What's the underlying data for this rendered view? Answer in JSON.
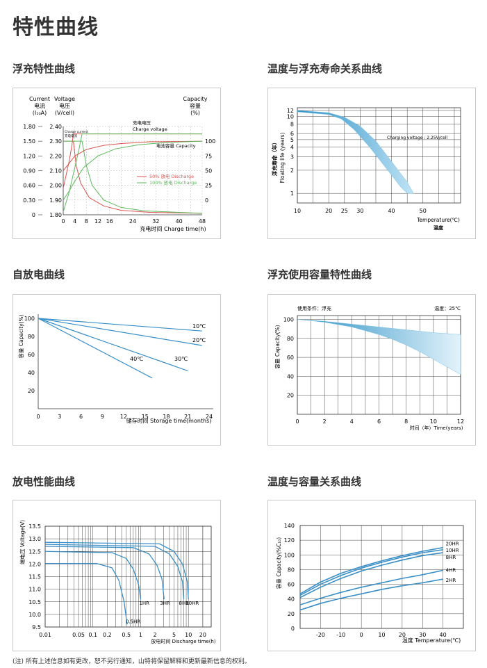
{
  "page_title": "特性曲线",
  "footnote": "(注) 所有上述信息如有更改，恕不另行通知，山特将保留解释和更新最新信息的权利。",
  "sections": {
    "float": "浮充特性曲线",
    "temp_life": "温度与浮充寿命关系曲线",
    "self_discharge": "自放电曲线",
    "float_capacity": "浮充使用容量特性曲线",
    "discharge": "放电性能曲线",
    "temp_capacity": "温度与容量关系曲线"
  },
  "chart_data": [
    {
      "id": "float",
      "type": "line",
      "labels": {
        "current_head": "Current",
        "current_cn": "电流",
        "current_unit": "(I₁₀A)",
        "voltage_head": "Voltage",
        "voltage_cn": "电压",
        "voltage_unit": "(V/cell)",
        "capacity_head": "Capacity",
        "capacity_cn": "容量",
        "capacity_unit": "(%)",
        "xlabel": "充电时间 Charge time(h)",
        "charge_voltage_cn": "充电电压",
        "charge_voltage_en": "Charge voltage",
        "charge_current_en": "Charge current",
        "charge_current_cn": "充电电流",
        "capacity_label": "电池容量 Capacity",
        "legend_50": "50% 放电 Discharge",
        "legend_100": "100% 放电 Discharge"
      },
      "current_ticks": [
        "1.80",
        "1.50",
        "1.20",
        "0.90",
        "0.60",
        "0.30",
        "0"
      ],
      "voltage_ticks": [
        "2.40",
        "2.30",
        "2.20",
        "2.10",
        "2.00",
        "1.90",
        "1.80"
      ],
      "capacity_ticks": [
        "100",
        "75",
        "50",
        "25",
        "0"
      ],
      "x_ticks": [
        "0",
        "4",
        "8",
        "12",
        "16",
        "20",
        "24",
        "28",
        "32",
        "36",
        "40",
        "44",
        "48"
      ],
      "x_tick_labels_shown": [
        "0",
        "4",
        "8",
        "12",
        "16",
        "24",
        "32",
        "40",
        "48"
      ],
      "colors": {
        "d50": "#d9534f",
        "d100": "#5cb85c"
      },
      "series": [
        {
          "key": "voltage_50",
          "color": "#d9534f",
          "x": [
            0,
            1,
            2,
            3,
            3.5,
            48
          ],
          "y_voltage": [
            1.98,
            2.07,
            2.16,
            2.27,
            2.35,
            2.35
          ]
        },
        {
          "key": "voltage_100",
          "color": "#5cb85c",
          "x": [
            0,
            2,
            4,
            5.5,
            6.5,
            48
          ],
          "y_voltage": [
            1.82,
            1.95,
            2.12,
            2.25,
            2.35,
            2.35
          ]
        },
        {
          "key": "current_50",
          "color": "#d9534f",
          "x": [
            0,
            3.5,
            4.5,
            6,
            9,
            14,
            20,
            30,
            48
          ],
          "y_current": [
            1.5,
            1.5,
            1.0,
            0.65,
            0.35,
            0.18,
            0.09,
            0.05,
            0.03
          ]
        },
        {
          "key": "current_100",
          "color": "#5cb85c",
          "x": [
            0,
            6.5,
            8,
            10,
            14,
            20,
            28,
            40,
            48
          ],
          "y_current": [
            1.5,
            1.5,
            1.0,
            0.6,
            0.3,
            0.15,
            0.08,
            0.05,
            0.03
          ]
        },
        {
          "key": "capacity_50",
          "color": "#d9534f",
          "x": [
            0,
            2,
            4,
            8,
            14,
            20,
            30,
            48
          ],
          "y_capacity": [
            50,
            62,
            75,
            86,
            93,
            96,
            99,
            100
          ]
        },
        {
          "key": "capacity_100",
          "color": "#5cb85c",
          "x": [
            0,
            2,
            4,
            7,
            12,
            18,
            26,
            36,
            48
          ],
          "y_capacity": [
            0,
            15,
            32,
            55,
            75,
            87,
            94,
            98,
            100
          ]
        }
      ]
    },
    {
      "id": "temp_life",
      "type": "area",
      "ylabel_cn": "浮充寿命（年）",
      "ylabel_en": "Floating life (years)",
      "xlabel_en": "Temperature(℃)",
      "xlabel_cn": "温度",
      "annotation": "Charging voltage : 2.25V/cell",
      "x_ticks": [
        10,
        20,
        25,
        30,
        40,
        50
      ],
      "y_ticks": [
        1,
        2,
        3,
        4,
        5,
        6,
        8,
        10,
        12
      ],
      "xlim": [
        10,
        50
      ],
      "band_upper": {
        "x": [
          10,
          20,
          25,
          30,
          35,
          40,
          45,
          47
        ],
        "y": [
          12,
          11.2,
          9.8,
          7.5,
          4.8,
          2.6,
          1.4,
          1.0
        ]
      },
      "band_lower": {
        "x": [
          10,
          20,
          24,
          28,
          33,
          38,
          43,
          45
        ],
        "y": [
          11.5,
          10.6,
          9.3,
          6.8,
          4.0,
          2.2,
          1.2,
          1.0
        ]
      }
    },
    {
      "id": "self_discharge",
      "type": "line",
      "ylabel": "容量 Capacity(%)",
      "xlabel": "储存时间 Storage time(months)",
      "x_ticks": [
        0,
        3,
        6,
        9,
        12,
        15,
        18,
        21,
        24
      ],
      "y_ticks": [
        20,
        40,
        60,
        80,
        100
      ],
      "xlim": [
        0,
        24
      ],
      "ylim": [
        0,
        100
      ],
      "series": [
        {
          "name": "10℃",
          "x": [
            0,
            23
          ],
          "y": [
            100,
            86
          ]
        },
        {
          "name": "20℃",
          "x": [
            0,
            23
          ],
          "y": [
            100,
            70
          ]
        },
        {
          "name": "30℃",
          "x": [
            0,
            21
          ],
          "y": [
            100,
            42
          ]
        },
        {
          "name": "40℃",
          "x": [
            0,
            16
          ],
          "y": [
            100,
            34
          ]
        }
      ]
    },
    {
      "id": "float_capacity",
      "type": "area",
      "condition": "使用条件：浮充",
      "temperature": "温度：25℃",
      "ylabel": "容量 Capacity(%)",
      "xlabel": "时间（年）Time(years)",
      "x_ticks": [
        0,
        2,
        4,
        6,
        8,
        10,
        12
      ],
      "y_ticks": [
        20,
        40,
        60,
        80,
        100
      ],
      "xlim": [
        0,
        12
      ],
      "ylim": [
        0,
        100
      ],
      "band_upper": {
        "x": [
          0,
          2,
          4,
          6,
          8,
          10,
          12
        ],
        "y": [
          100,
          98,
          95,
          92,
          89,
          86,
          84
        ]
      },
      "band_lower": {
        "x": [
          0,
          2,
          4,
          6,
          7,
          8,
          9,
          10,
          11,
          12
        ],
        "y": [
          100,
          97,
          92,
          84,
          79,
          73,
          66,
          58,
          50,
          42
        ]
      }
    },
    {
      "id": "discharge",
      "type": "line",
      "ylabel": "端电压 Voltage(V)",
      "xlabel": "放电时间 Discharge time(h)",
      "x_ticks": [
        "0.01",
        "0.05",
        "0.1",
        "0.2",
        "0.5",
        "1",
        "2",
        "5",
        "10",
        "20"
      ],
      "y_ticks": [
        9.5,
        10.0,
        10.5,
        11.0,
        11.5,
        12.0,
        12.5,
        13.0,
        13.5
      ],
      "xlim": [
        0.01,
        30
      ],
      "ylim": [
        9.5,
        13.5
      ],
      "x_scale": "log",
      "series": [
        {
          "name": "0.5HR",
          "x": [
            0.01,
            0.12,
            0.25,
            0.35,
            0.45,
            0.52
          ],
          "y": [
            12.02,
            12.02,
            11.85,
            11.35,
            10.5,
            9.6
          ]
        },
        {
          "name": "1HR",
          "x": [
            0.01,
            0.25,
            0.5,
            0.7,
            0.9,
            1.0
          ],
          "y": [
            12.5,
            12.45,
            12.22,
            11.8,
            11.2,
            10.6
          ]
        },
        {
          "name": "3HR",
          "x": [
            0.01,
            0.7,
            1.5,
            2.2,
            2.8,
            3.1
          ],
          "y": [
            12.7,
            12.65,
            12.4,
            11.95,
            11.4,
            10.6
          ]
        },
        {
          "name": "8HR",
          "x": [
            0.01,
            2.0,
            4.0,
            6.0,
            7.5,
            8.0
          ],
          "y": [
            12.78,
            12.7,
            12.4,
            11.9,
            11.3,
            10.6
          ]
        },
        {
          "name": "10HR",
          "x": [
            0.01,
            2.5,
            5.0,
            7.5,
            9.5,
            10.0
          ],
          "y": [
            12.86,
            12.8,
            12.5,
            12.0,
            11.3,
            10.6
          ]
        }
      ]
    },
    {
      "id": "temp_capacity",
      "type": "line",
      "ylabel": "容量 Capacity(%C₁₀)",
      "xlabel": "温度 Temperature(℃)",
      "x_ticks": [
        -20,
        -10,
        0,
        10,
        20,
        30,
        40
      ],
      "y_ticks": [
        0,
        20,
        40,
        60,
        80,
        100,
        120,
        140
      ],
      "xlim": [
        -30,
        50
      ],
      "ylim": [
        0,
        140
      ],
      "series": [
        {
          "name": "20HR",
          "x": [
            -30,
            -20,
            -10,
            0,
            10,
            20,
            30,
            40
          ],
          "y": [
            47,
            63,
            75,
            84,
            92,
            99,
            105,
            110
          ]
        },
        {
          "name": "10HR",
          "x": [
            -30,
            -20,
            -10,
            0,
            10,
            20,
            30,
            40
          ],
          "y": [
            45,
            60,
            72,
            82,
            90,
            97,
            103,
            107
          ]
        },
        {
          "name": "8HR",
          "x": [
            -30,
            -20,
            -10,
            0,
            10,
            20,
            30,
            40
          ],
          "y": [
            42,
            56,
            68,
            78,
            86,
            93,
            99,
            103
          ]
        },
        {
          "name": "4HR",
          "x": [
            -30,
            -20,
            -10,
            0,
            10,
            20,
            30,
            40
          ],
          "y": [
            32,
            41,
            49,
            56,
            62,
            68,
            73,
            79
          ]
        },
        {
          "name": "2HR",
          "x": [
            -30,
            -20,
            -10,
            0,
            10,
            20,
            30,
            40
          ],
          "y": [
            25,
            34,
            41,
            47,
            53,
            58,
            62,
            67
          ]
        }
      ]
    }
  ]
}
